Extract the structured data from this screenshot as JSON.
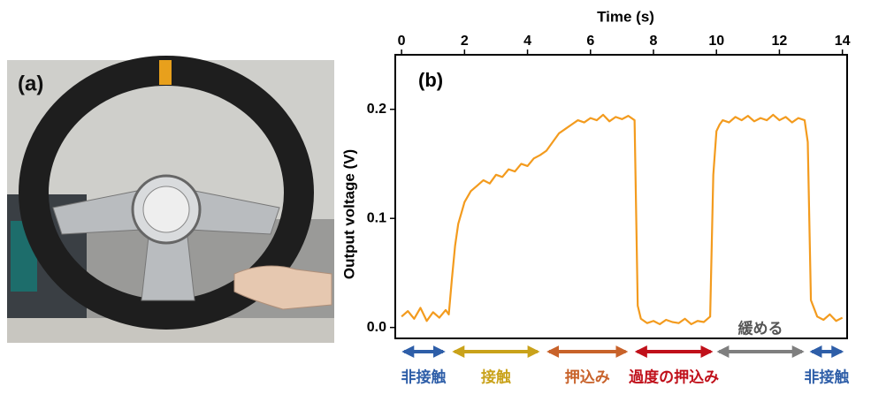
{
  "photo_panel": {
    "label": "(a)"
  },
  "chart_data": {
    "type": "line",
    "panel_label": "(b)",
    "x_label": "Time (s)",
    "y_label": "Output voltage (V)",
    "xlim": [
      -0.2,
      14.15
    ],
    "xticks": [
      0,
      2,
      4,
      6,
      8,
      10,
      12,
      14
    ],
    "ylim": [
      -0.01,
      0.25
    ],
    "yticks": [
      {
        "value": 0,
        "label": "0.0"
      },
      0.1,
      0.2
    ],
    "x": [
      0,
      0.2,
      0.4,
      0.6,
      0.8,
      1.0,
      1.2,
      1.4,
      1.5,
      1.6,
      1.7,
      1.8,
      1.9,
      2.0,
      2.2,
      2.4,
      2.6,
      2.8,
      3.0,
      3.2,
      3.4,
      3.6,
      3.8,
      4.0,
      4.2,
      4.4,
      4.6,
      4.8,
      5.0,
      5.2,
      5.4,
      5.6,
      5.8,
      6.0,
      6.2,
      6.4,
      6.6,
      6.8,
      7.0,
      7.2,
      7.4,
      7.5,
      7.6,
      7.8,
      8.0,
      8.2,
      8.4,
      8.6,
      8.8,
      9.0,
      9.2,
      9.4,
      9.6,
      9.8,
      9.9,
      10.0,
      10.1,
      10.2,
      10.4,
      10.6,
      10.8,
      11.0,
      11.2,
      11.4,
      11.6,
      11.8,
      12.0,
      12.2,
      12.4,
      12.6,
      12.8,
      12.9,
      13.0,
      13.2,
      13.4,
      13.6,
      13.8,
      14.0
    ],
    "series": [
      {
        "color": "#f39b1e",
        "values": [
          0.01,
          0.015,
          0.008,
          0.018,
          0.006,
          0.014,
          0.009,
          0.016,
          0.012,
          0.045,
          0.075,
          0.095,
          0.105,
          0.115,
          0.125,
          0.13,
          0.135,
          0.132,
          0.14,
          0.138,
          0.145,
          0.143,
          0.15,
          0.148,
          0.155,
          0.158,
          0.162,
          0.17,
          0.178,
          0.182,
          0.186,
          0.19,
          0.188,
          0.192,
          0.19,
          0.195,
          0.189,
          0.193,
          0.191,
          0.194,
          0.19,
          0.02,
          0.008,
          0.004,
          0.006,
          0.003,
          0.007,
          0.005,
          0.004,
          0.008,
          0.003,
          0.006,
          0.005,
          0.01,
          0.14,
          0.18,
          0.186,
          0.19,
          0.188,
          0.193,
          0.19,
          0.194,
          0.189,
          0.192,
          0.19,
          0.195,
          0.19,
          0.193,
          0.188,
          0.192,
          0.19,
          0.17,
          0.025,
          0.01,
          0.007,
          0.012,
          0.006,
          0.009
        ]
      }
    ],
    "annotations": [
      {
        "text": "非接触",
        "color": "#2e5ea8",
        "x_start": 0,
        "x_end": 1.4,
        "position": "below"
      },
      {
        "text": "接触",
        "color": "#c9a21a",
        "x_start": 1.6,
        "x_end": 4.4,
        "position": "below"
      },
      {
        "text": "押込み",
        "color": "#c8622a",
        "x_start": 4.6,
        "x_end": 7.2,
        "position": "below"
      },
      {
        "text": "過度の押込み",
        "color": "#c0101a",
        "x_start": 7.4,
        "x_end": 9.9,
        "position": "below"
      },
      {
        "text": "緩める",
        "color": "#7f7f7f",
        "x_start": 10.0,
        "x_end": 12.8,
        "position": "above"
      },
      {
        "text": "非接触",
        "color": "#2e5ea8",
        "x_start": 12.95,
        "x_end": 14.05,
        "position": "below"
      }
    ]
  }
}
